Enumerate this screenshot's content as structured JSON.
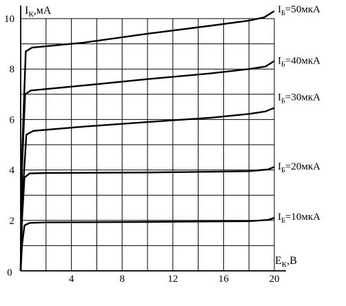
{
  "chart_data": {
    "type": "line",
    "xlabel": "E",
    "xlabel_sub": "К",
    "xlabel_unit": ",В",
    "ylabel": "I",
    "ylabel_sub": "К",
    "ylabel_unit": ",мА",
    "xlim": [
      0,
      20
    ],
    "ylim": [
      0,
      10
    ],
    "grid": true,
    "x_ticks": [
      {
        "value": 0,
        "label": "0"
      },
      {
        "value": 4,
        "label": "4"
      },
      {
        "value": 8,
        "label": "8"
      },
      {
        "value": 12,
        "label": "12"
      },
      {
        "value": 16,
        "label": "16"
      },
      {
        "value": 20,
        "label": "20"
      }
    ],
    "y_ticks": [
      {
        "value": 2,
        "label": "2"
      },
      {
        "value": 4,
        "label": "4"
      },
      {
        "value": 6,
        "label": "6"
      },
      {
        "value": 8,
        "label": "8"
      },
      {
        "value": 10,
        "label": "10"
      }
    ],
    "series": [
      {
        "name_main": "I",
        "name_sub": "Б",
        "name_value": "=10мкА",
        "points": [
          [
            0,
            0
          ],
          [
            0.1,
            1.0
          ],
          [
            0.3,
            1.8
          ],
          [
            0.7,
            1.9
          ],
          [
            2,
            1.92
          ],
          [
            10,
            1.94
          ],
          [
            18,
            1.97
          ],
          [
            19.5,
            2.02
          ],
          [
            20,
            2.1
          ]
        ]
      },
      {
        "name_main": "I",
        "name_sub": "Б",
        "name_value": "=20мкА",
        "points": [
          [
            0,
            0
          ],
          [
            0.1,
            2.0
          ],
          [
            0.3,
            3.7
          ],
          [
            0.7,
            3.86
          ],
          [
            2,
            3.88
          ],
          [
            10,
            3.9
          ],
          [
            18,
            3.95
          ],
          [
            19.5,
            4.02
          ],
          [
            20,
            4.12
          ]
        ]
      },
      {
        "name_main": "I",
        "name_sub": "Б",
        "name_value": "=30мкА",
        "points": [
          [
            0,
            0
          ],
          [
            0.15,
            3.0
          ],
          [
            0.45,
            5.4
          ],
          [
            1,
            5.55
          ],
          [
            5,
            5.72
          ],
          [
            10,
            5.9
          ],
          [
            15,
            6.07
          ],
          [
            18,
            6.22
          ],
          [
            19.3,
            6.32
          ],
          [
            20,
            6.46
          ]
        ]
      },
      {
        "name_main": "I",
        "name_sub": "Б",
        "name_value": "=40мкА",
        "points": [
          [
            0,
            0
          ],
          [
            0.1,
            4.0
          ],
          [
            0.35,
            7.0
          ],
          [
            0.8,
            7.15
          ],
          [
            5,
            7.35
          ],
          [
            10,
            7.6
          ],
          [
            15,
            7.83
          ],
          [
            18,
            8.0
          ],
          [
            19.3,
            8.1
          ],
          [
            20,
            8.32
          ]
        ]
      },
      {
        "name_main": "I",
        "name_sub": "Б",
        "name_value": "=50мкА",
        "points": [
          [
            0,
            0
          ],
          [
            0.1,
            4.5
          ],
          [
            0.4,
            8.7
          ],
          [
            0.9,
            8.85
          ],
          [
            5,
            9.05
          ],
          [
            10,
            9.4
          ],
          [
            15,
            9.72
          ],
          [
            18,
            9.92
          ],
          [
            19.2,
            10.05
          ],
          [
            20,
            10.3
          ]
        ]
      }
    ]
  }
}
